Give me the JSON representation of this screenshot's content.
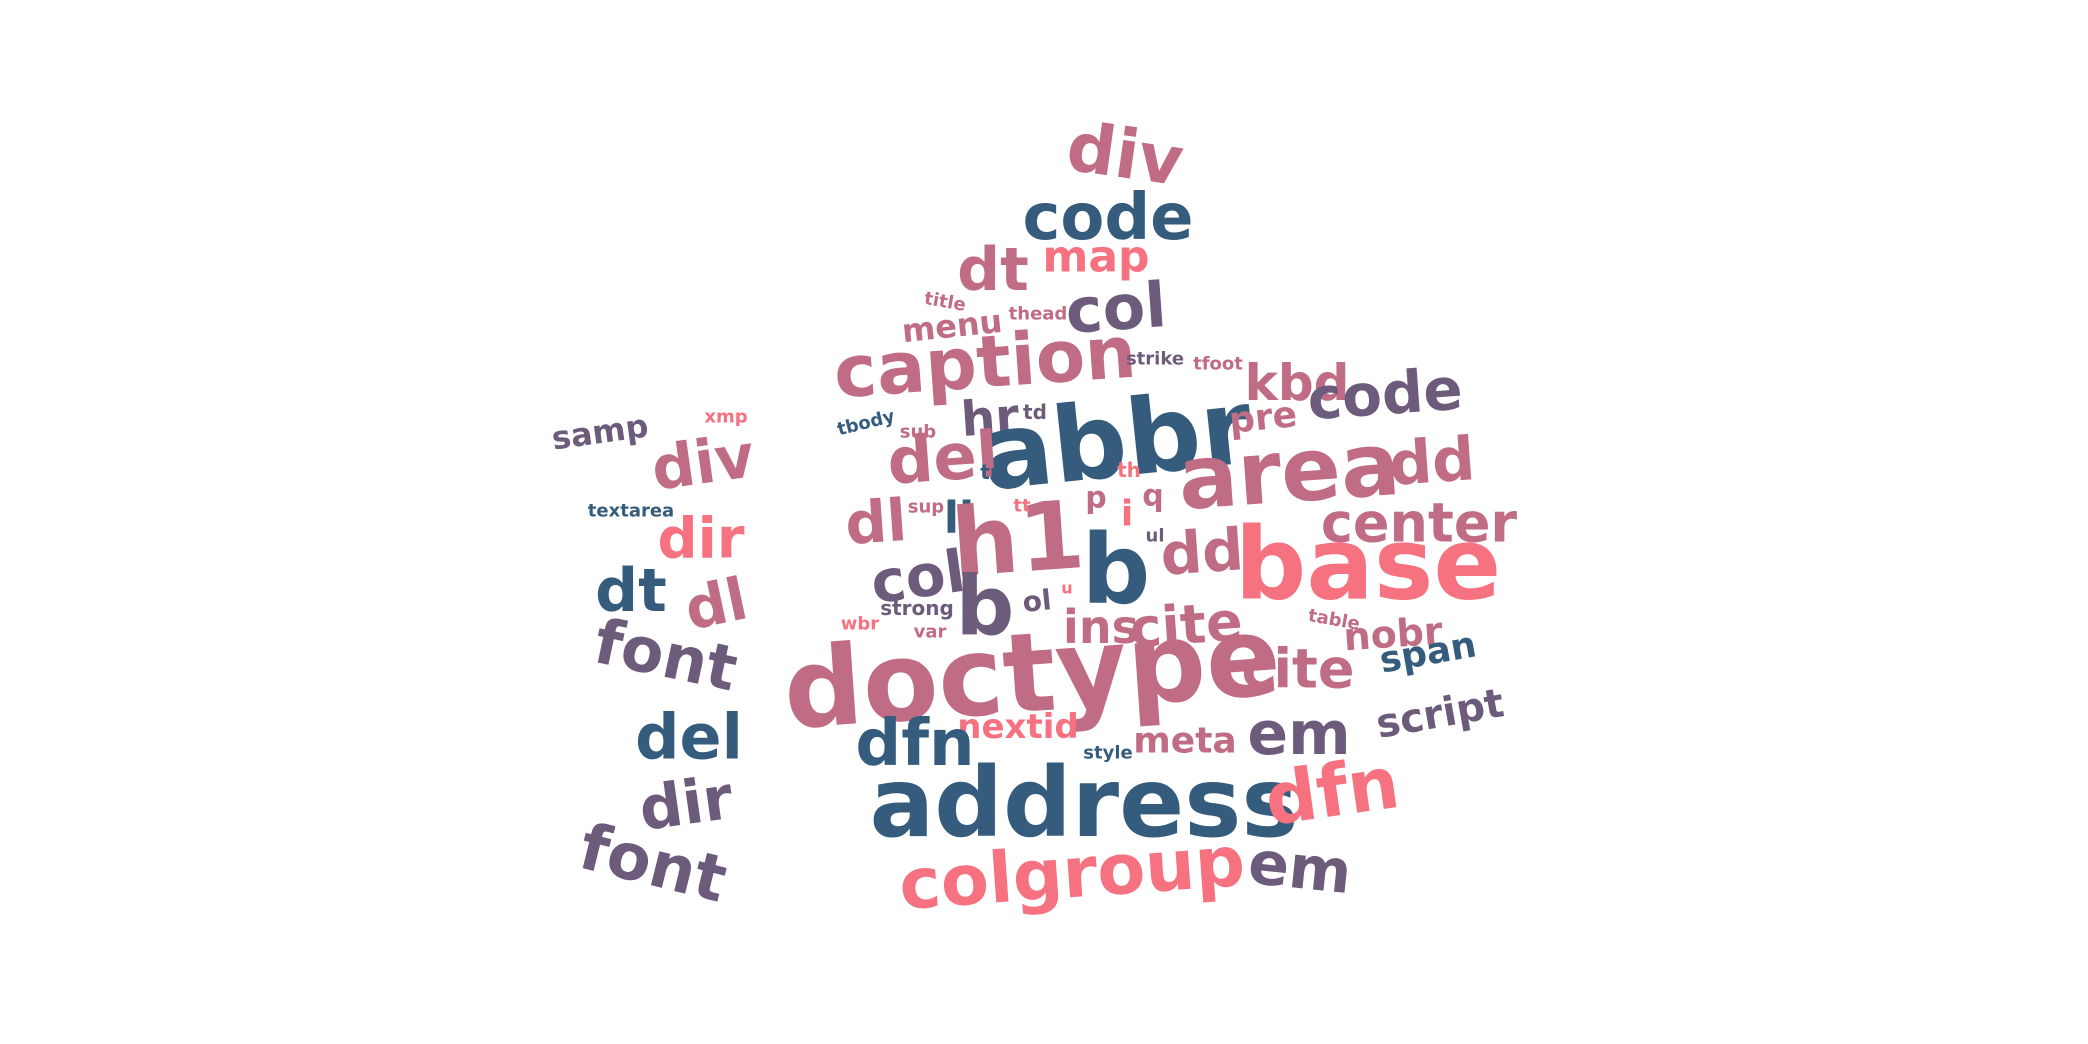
{
  "palette": {
    "navy": "#355C7D",
    "plum": "#6C5B7B",
    "mauve": "#C06C84",
    "coral": "#F67280"
  },
  "words": [
    {
      "text": "div",
      "color": "mauve"
    },
    {
      "text": "code",
      "color": "navy"
    },
    {
      "text": "dt",
      "color": "mauve"
    },
    {
      "text": "map",
      "color": "coral"
    },
    {
      "text": "col",
      "color": "plum"
    },
    {
      "text": "title",
      "color": "mauve"
    },
    {
      "text": "thead",
      "color": "mauve"
    },
    {
      "text": "menu",
      "color": "mauve"
    },
    {
      "text": "caption",
      "color": "mauve"
    },
    {
      "text": "strike",
      "color": "plum"
    },
    {
      "text": "tfoot",
      "color": "mauve"
    },
    {
      "text": "kbd",
      "color": "mauve"
    },
    {
      "text": "code",
      "color": "plum"
    },
    {
      "text": "tbody",
      "color": "navy"
    },
    {
      "text": "hr",
      "color": "plum"
    },
    {
      "text": "td",
      "color": "plum"
    },
    {
      "text": "abbr",
      "color": "navy"
    },
    {
      "text": "pre",
      "color": "mauve"
    },
    {
      "text": "area",
      "color": "mauve"
    },
    {
      "text": "dd",
      "color": "mauve"
    },
    {
      "text": "sub",
      "color": "mauve"
    },
    {
      "text": "del",
      "color": "mauve"
    },
    {
      "text": "tr",
      "color": "navy"
    },
    {
      "text": "th",
      "color": "coral"
    },
    {
      "text": "center",
      "color": "mauve"
    },
    {
      "text": "dl",
      "color": "mauve"
    },
    {
      "text": "sup",
      "color": "mauve"
    },
    {
      "text": "li",
      "color": "navy"
    },
    {
      "text": "h1",
      "color": "mauve"
    },
    {
      "text": "p",
      "color": "mauve"
    },
    {
      "text": "i",
      "color": "coral"
    },
    {
      "text": "q",
      "color": "mauve"
    },
    {
      "text": "tt",
      "color": "coral"
    },
    {
      "text": "ul",
      "color": "plum"
    },
    {
      "text": "dd",
      "color": "mauve"
    },
    {
      "text": "base",
      "color": "coral"
    },
    {
      "text": "b",
      "color": "navy"
    },
    {
      "text": "col",
      "color": "plum"
    },
    {
      "text": "b",
      "color": "plum"
    },
    {
      "text": "ol",
      "color": "plum"
    },
    {
      "text": "u",
      "color": "coral"
    },
    {
      "text": "strong",
      "color": "plum"
    },
    {
      "text": "ins",
      "color": "mauve"
    },
    {
      "text": "cite",
      "color": "mauve"
    },
    {
      "text": "table",
      "color": "mauve"
    },
    {
      "text": "wbr",
      "color": "coral"
    },
    {
      "text": "var",
      "color": "mauve"
    },
    {
      "text": "nobr",
      "color": "mauve"
    },
    {
      "text": "cite",
      "color": "mauve"
    },
    {
      "text": "span",
      "color": "navy"
    },
    {
      "text": "doctype",
      "color": "mauve"
    },
    {
      "text": "nextid",
      "color": "coral"
    },
    {
      "text": "script",
      "color": "plum"
    },
    {
      "text": "dfn",
      "color": "navy"
    },
    {
      "text": "style",
      "color": "navy"
    },
    {
      "text": "meta",
      "color": "mauve"
    },
    {
      "text": "em",
      "color": "plum"
    },
    {
      "text": "address",
      "color": "navy"
    },
    {
      "text": "dfn",
      "color": "coral"
    },
    {
      "text": "colgroup",
      "color": "coral"
    },
    {
      "text": "em",
      "color": "plum"
    },
    {
      "text": "samp",
      "color": "plum"
    },
    {
      "text": "xmp",
      "color": "coral"
    },
    {
      "text": "div",
      "color": "mauve"
    },
    {
      "text": "textarea",
      "color": "navy"
    },
    {
      "text": "dir",
      "color": "coral"
    },
    {
      "text": "dt",
      "color": "navy"
    },
    {
      "text": "dl",
      "color": "mauve"
    },
    {
      "text": "font",
      "color": "plum"
    },
    {
      "text": "del",
      "color": "navy"
    },
    {
      "text": "dir",
      "color": "plum"
    },
    {
      "text": "font",
      "color": "plum"
    }
  ]
}
